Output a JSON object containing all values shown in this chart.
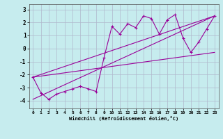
{
  "xlabel": "Windchill (Refroidissement éolien,°C)",
  "background_color": "#c6ecee",
  "grid_color": "#b0b8cc",
  "line_color": "#990099",
  "xlim": [
    -0.5,
    23.5
  ],
  "ylim": [
    -4.6,
    3.4
  ],
  "yticks": [
    -4,
    -3,
    -2,
    -1,
    0,
    1,
    2,
    3
  ],
  "xticks": [
    0,
    1,
    2,
    3,
    4,
    5,
    6,
    7,
    8,
    9,
    10,
    11,
    12,
    13,
    14,
    15,
    16,
    17,
    18,
    19,
    20,
    21,
    22,
    23
  ],
  "series1_x": [
    0,
    1,
    2,
    3,
    4,
    5,
    6,
    7,
    8,
    9,
    10,
    11,
    12,
    13,
    14,
    15,
    16,
    17,
    18,
    19,
    20,
    21,
    22,
    23
  ],
  "series1_y": [
    -2.2,
    -3.4,
    -3.9,
    -3.5,
    -3.3,
    -3.1,
    -2.9,
    -3.1,
    -3.3,
    -0.7,
    1.7,
    1.1,
    1.9,
    1.6,
    2.5,
    2.3,
    1.1,
    2.2,
    2.6,
    0.8,
    -0.3,
    0.5,
    1.5,
    2.5
  ],
  "series2_x": [
    0,
    23
  ],
  "series2_y": [
    -2.2,
    2.5
  ],
  "series3_x": [
    0,
    23
  ],
  "series3_y": [
    -3.9,
    2.5
  ],
  "series4_x": [
    0,
    23
  ],
  "series4_y": [
    -2.2,
    -0.3
  ]
}
